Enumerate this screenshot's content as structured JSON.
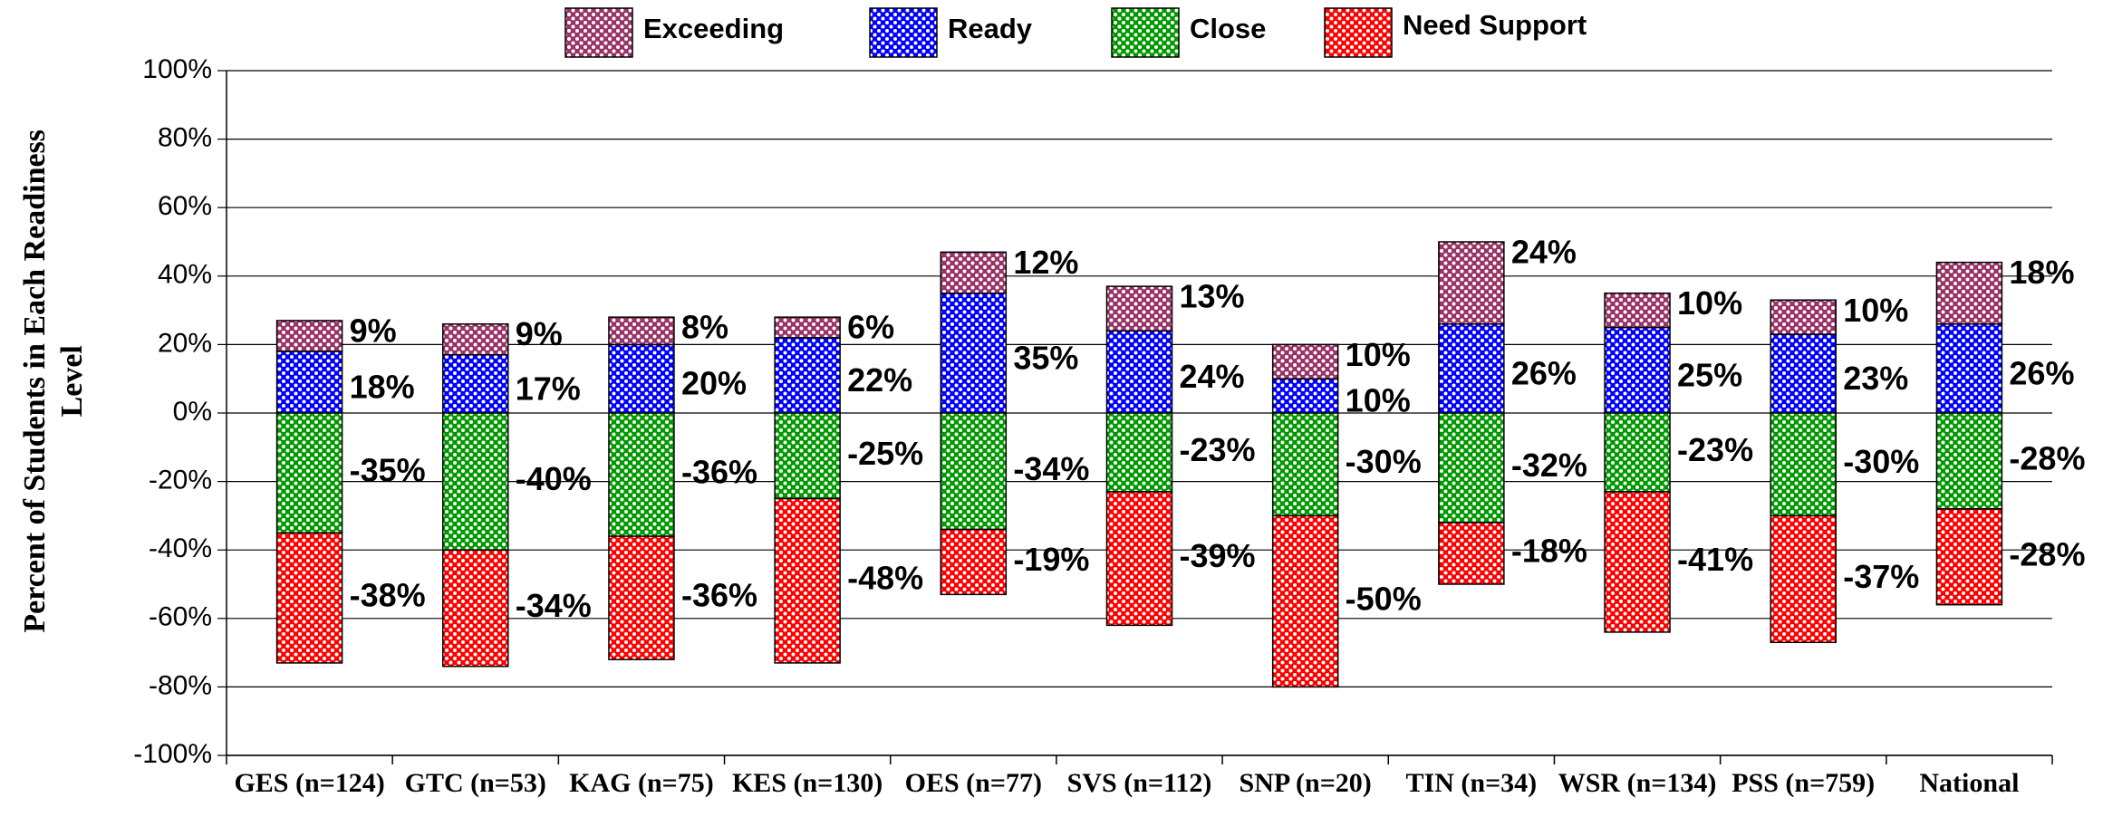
{
  "chart_data": {
    "type": "diverging_stacked_bar",
    "y_label": "Percent of Students in Each Readiness Level",
    "categories": [
      "GES (n=124)",
      "GTC (n=53)",
      "KAG (n=75)",
      "KES (n=130)",
      "OES (n=77)",
      "SVS (n=112)",
      "SNP (n=20)",
      "TIN (n=34)",
      "WSR (n=134)",
      "PSS (n=759)",
      "National"
    ],
    "series": [
      {
        "name": "Exceeding",
        "color": "#993366",
        "values": [
          9,
          9,
          8,
          6,
          12,
          13,
          10,
          24,
          10,
          10,
          18
        ],
        "value_labels": [
          "9%",
          "9%",
          "8%",
          "6%",
          "12%",
          "13%",
          "10%",
          "24%",
          "10%",
          "10%",
          "18%"
        ]
      },
      {
        "name": "Ready",
        "color": "#0000ff",
        "values": [
          18,
          17,
          20,
          22,
          35,
          24,
          10,
          26,
          25,
          23,
          26
        ],
        "value_labels": [
          "18%",
          "17%",
          "20%",
          "22%",
          "35%",
          "24%",
          "10%",
          "26%",
          "25%",
          "23%",
          "26%"
        ]
      },
      {
        "name": "Close",
        "color": "#009900",
        "values": [
          -35,
          -40,
          -36,
          -25,
          -34,
          -23,
          -30,
          -32,
          -23,
          -30,
          -28
        ],
        "value_labels": [
          "-35%",
          "-40%",
          "-36%",
          "-25%",
          "-34%",
          "-23%",
          "-30%",
          "-32%",
          "-23%",
          "-30%",
          "-28%"
        ]
      },
      {
        "name": "Need Support",
        "color": "#ff0000",
        "values": [
          -38,
          -34,
          -36,
          -48,
          -19,
          -39,
          -50,
          -18,
          -41,
          -37,
          -28
        ],
        "value_labels": [
          "-38%",
          "-34%",
          "-36%",
          "-48%",
          "-19%",
          "-39%",
          "-50%",
          "-18%",
          "-41%",
          "-37%",
          "-28%"
        ]
      }
    ],
    "ylim": [
      -100,
      100
    ],
    "yticks": [
      {
        "value": -100,
        "label": "-100%"
      },
      {
        "value": -80,
        "label": "-80%"
      },
      {
        "value": -60,
        "label": "-60%"
      },
      {
        "value": -40,
        "label": "-40%"
      },
      {
        "value": -20,
        "label": "-20%"
      },
      {
        "value": 0,
        "label": "0%"
      },
      {
        "value": 20,
        "label": "20%"
      },
      {
        "value": 40,
        "label": "40%"
      },
      {
        "value": 60,
        "label": "60%"
      },
      {
        "value": 80,
        "label": "80%"
      },
      {
        "value": 100,
        "label": "100%"
      }
    ],
    "grid": true,
    "legend": "top"
  }
}
